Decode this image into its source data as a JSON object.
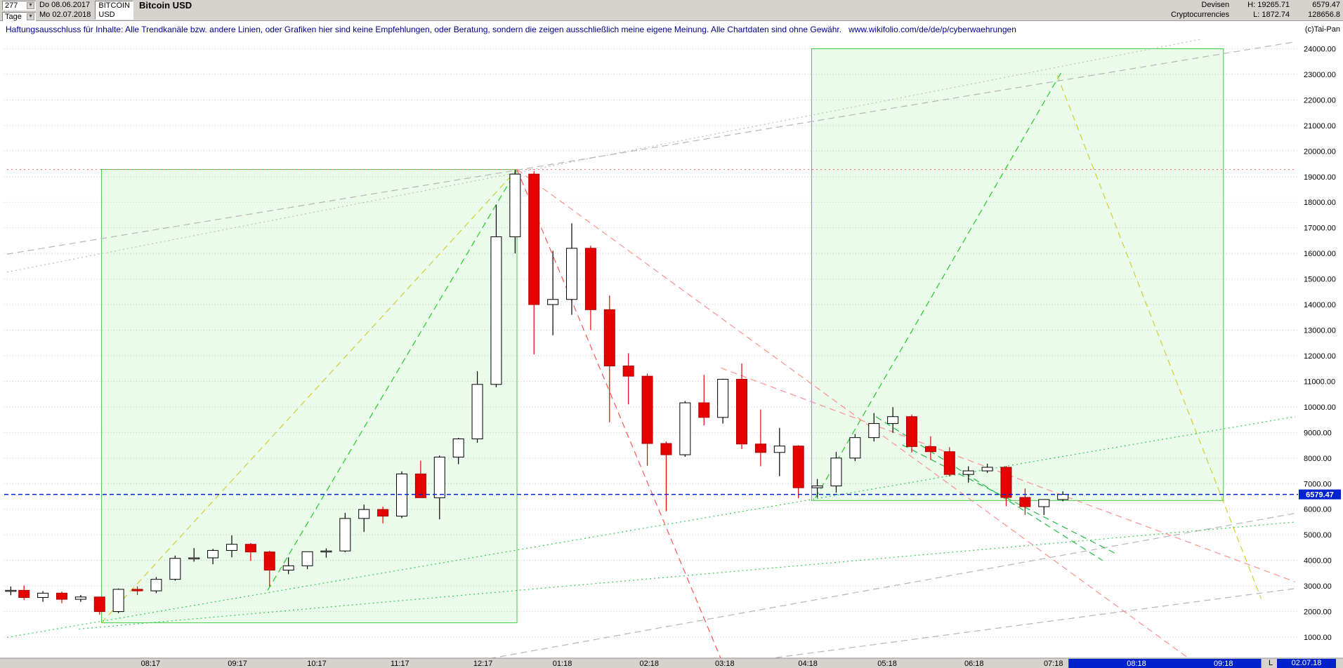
{
  "window": {
    "toolbar": {
      "bars_count": "277",
      "period_label": "Tage",
      "date_from": "Do 08.06.2017",
      "date_to": "Mo 02.07.2018",
      "symbol": "BITCOIN",
      "currency": "USD",
      "title": "Bitcoin USD",
      "category_1": "Devisen",
      "category_2": "Cryptocurrencies",
      "high_label": "H: 19265.71",
      "low_label": "L: 1872.74",
      "last_price": "6579.47",
      "volume": "128656.8"
    },
    "disclaimer_text": "Haftungsausschluss für Inhalte: Alle Trendkanäle bzw. andere Linien, oder Grafiken hier sind keine Empfehlungen, oder Beratung, sondern die zeigen ausschließlich meine eigene Meinung. Alle Chartdaten sind ohne Gewähr.",
    "disclaimer_url": "www.wikifolio.com/de/de/p/cyberwaehrungen",
    "copyright": "(c)Tai-Pan",
    "bottom_right_label": "L",
    "bottom_right_date": "02.07.18",
    "icons": {
      "dropdown": "▼"
    }
  },
  "chart_data": {
    "type": "candlestick",
    "instrument": "Bitcoin USD",
    "timeframe": "Tage",
    "bars_shown": 277,
    "range_start": "Do 08.06.2017",
    "range_end": "Mo 02.07.2018",
    "period_high": 19265.71,
    "period_low": 1872.74,
    "current_price": 6579.47,
    "current_price_label": "6579.47",
    "y_axis": {
      "min": 1000,
      "max": 24000,
      "step": 1000,
      "labels": [
        "24000.00",
        "23000.00",
        "22000.00",
        "21000.00",
        "20000.00",
        "19000.00",
        "18000.00",
        "17000.00",
        "16000.00",
        "15000.00",
        "14000.00",
        "13000.00",
        "12000.00",
        "11000.00",
        "10000.00",
        "9000.00",
        "8000.00",
        "7000.00",
        "6000.00",
        "5000.00",
        "4000.00",
        "3000.00",
        "2000.00",
        "1000.00"
      ]
    },
    "x_axis": {
      "tick_columns": [
        "label",
        "bar_index",
        "highlighted"
      ],
      "ticks": [
        [
          "08:17",
          38,
          0
        ],
        [
          "09:17",
          61,
          0
        ],
        [
          "10:17",
          82,
          0
        ],
        [
          "11:17",
          104,
          0
        ],
        [
          "12:17",
          126,
          0
        ],
        [
          "01:18",
          147,
          0
        ],
        [
          "02:18",
          170,
          0
        ],
        [
          "03:18",
          190,
          0
        ],
        [
          "04:18",
          212,
          0
        ],
        [
          "05:18",
          233,
          0
        ],
        [
          "06:18",
          256,
          0
        ],
        [
          "07:18",
          277,
          0
        ],
        [
          "08:18",
          299,
          1
        ],
        [
          "09:18",
          322,
          1
        ]
      ],
      "future_highlight_from_bar": 281,
      "future_highlight_to_bar": 332
    },
    "candles_weekly": {
      "columns": [
        "week_start",
        "open",
        "high",
        "low",
        "close"
      ],
      "rows": [
        [
          "08.06.17",
          2790,
          2980,
          2640,
          2830
        ],
        [
          "12.06.17",
          2830,
          3020,
          2450,
          2550
        ],
        [
          "19.06.17",
          2550,
          2800,
          2380,
          2720
        ],
        [
          "26.06.17",
          2720,
          2780,
          2330,
          2480
        ],
        [
          "03.07.17",
          2480,
          2650,
          2380,
          2570
        ],
        [
          "10.07.17",
          2570,
          2580,
          1872.74,
          2000
        ],
        [
          "17.07.17",
          2000,
          2900,
          1940,
          2870
        ],
        [
          "24.07.17",
          2870,
          2980,
          2650,
          2810
        ],
        [
          "31.07.17",
          2810,
          3350,
          2720,
          3260
        ],
        [
          "07.08.17",
          3260,
          4190,
          3210,
          4080
        ],
        [
          "14.08.17",
          4080,
          4480,
          3950,
          4100
        ],
        [
          "21.08.17",
          4100,
          4450,
          3850,
          4390
        ],
        [
          "28.08.17",
          4390,
          4980,
          4120,
          4630
        ],
        [
          "04.09.17",
          4630,
          4680,
          3980,
          4330
        ],
        [
          "11.09.17",
          4330,
          4380,
          2980,
          3620
        ],
        [
          "18.09.17",
          3620,
          4120,
          3460,
          3790
        ],
        [
          "25.09.17",
          3790,
          4260,
          3660,
          4340
        ],
        [
          "02.10.17",
          4340,
          4470,
          4110,
          4370
        ],
        [
          "09.10.17",
          4370,
          5860,
          4320,
          5640
        ],
        [
          "16.10.17",
          5640,
          6180,
          5110,
          5990
        ],
        [
          "23.10.17",
          5990,
          6100,
          5450,
          5730
        ],
        [
          "30.10.17",
          5730,
          7480,
          5650,
          7380
        ],
        [
          "06.11.17",
          7380,
          7900,
          6450,
          6450
        ],
        [
          "13.11.17",
          6450,
          8100,
          5605,
          8040
        ],
        [
          "20.11.17",
          8040,
          8790,
          7760,
          8750
        ],
        [
          "27.11.17",
          8750,
          11395,
          8600,
          10880
        ],
        [
          "04.12.17",
          10880,
          17900,
          10770,
          16650
        ],
        [
          "11.12.17",
          16650,
          19265.71,
          16000,
          19100
        ],
        [
          "18.12.17",
          19100,
          19220,
          12050,
          14000
        ],
        [
          "25.12.17",
          14000,
          16100,
          12800,
          14200
        ],
        [
          "01.01.18",
          14200,
          17176,
          13600,
          16200
        ],
        [
          "08.01.18",
          16200,
          16300,
          13000,
          13800
        ],
        [
          "15.01.18",
          13800,
          14350,
          9400,
          11600
        ],
        [
          "22.01.18",
          11600,
          12100,
          10100,
          11200
        ],
        [
          "29.01.18",
          11200,
          11300,
          7700,
          8570
        ],
        [
          "05.02.18",
          8570,
          8650,
          5920,
          8130
        ],
        [
          "12.02.18",
          8130,
          10230,
          8050,
          10160
        ],
        [
          "19.02.18",
          10160,
          11250,
          9280,
          9590
        ],
        [
          "26.02.18",
          9590,
          11100,
          9350,
          11080
        ],
        [
          "05.03.18",
          11080,
          11700,
          8350,
          8550
        ],
        [
          "12.03.18",
          8550,
          9900,
          7680,
          8220
        ],
        [
          "19.03.18",
          8220,
          9180,
          7290,
          8470
        ],
        [
          "26.03.18",
          8470,
          8500,
          6430,
          6840
        ],
        [
          "02.04.18",
          6840,
          7180,
          6450,
          6910
        ],
        [
          "09.04.18",
          6910,
          8240,
          6650,
          8000
        ],
        [
          "16.04.18",
          8000,
          8940,
          7880,
          8800
        ],
        [
          "23.04.18",
          8800,
          9760,
          8650,
          9350
        ],
        [
          "30.04.18",
          9350,
          9990,
          8990,
          9620
        ],
        [
          "07.05.18",
          9620,
          9700,
          8220,
          8450
        ],
        [
          "14.05.18",
          8450,
          8850,
          7930,
          8250
        ],
        [
          "21.05.18",
          8250,
          8420,
          7280,
          7360
        ],
        [
          "28.05.18",
          7360,
          7680,
          7040,
          7500
        ],
        [
          "04.06.18",
          7500,
          7780,
          7420,
          7640
        ],
        [
          "11.06.18",
          7640,
          7690,
          6120,
          6460
        ],
        [
          "18.06.18",
          6460,
          6810,
          5780,
          6100
        ],
        [
          "25.06.18",
          6100,
          6330,
          5770,
          6380
        ],
        [
          "02.07.18",
          6380,
          6700,
          6310,
          6579.47
        ]
      ]
    },
    "annotations": {
      "boxes": {
        "columns": [
          "name",
          "stroke",
          "fill",
          "from_bar",
          "from_price",
          "to_bar",
          "to_price"
        ],
        "rows": [
          [
            "bull-phase-box-2017",
            "#44cc44",
            "rgba(60,220,60,0.10)",
            25,
            1560,
            135,
            19280
          ],
          [
            "projection-box-2018",
            "#44cc44",
            "rgba(60,220,60,0.10)",
            213,
            6340,
            322,
            24000
          ]
        ]
      },
      "lines": {
        "columns": [
          "name",
          "color",
          "style",
          "from_bar",
          "from_price",
          "to_bar",
          "to_price"
        ],
        "rows": [
          [
            "ath-level-line",
            "#ff7070",
            "dotted",
            0,
            19280,
            341,
            19280
          ],
          [
            "bull-channel-diagonal-yellow",
            "#cfcf30",
            "dashed",
            25,
            1560,
            135,
            19280
          ],
          [
            "bull-trend-green",
            "#22cc22",
            "dashed",
            69,
            2830,
            135,
            19280
          ],
          [
            "projection-up-green",
            "#22cc22",
            "dashed",
            214,
            6440,
            279,
            23060
          ],
          [
            "projection-down-yellow",
            "#cfcf30",
            "dashed",
            278,
            22960,
            332,
            2500
          ],
          [
            "longterm-line-gray-dashed",
            "#b5b5b5",
            "dashed",
            0,
            15970,
            341,
            24270
          ],
          [
            "longterm-line-gray-dotted",
            "#bdbdbd",
            "dotted",
            0,
            15270,
            341,
            25090
          ],
          [
            "fan-gray-lower-1",
            "#b5b5b5",
            "dashed",
            125,
            90,
            341,
            5840
          ],
          [
            "fan-gray-lower-2",
            "#b5b5b5",
            "dashed",
            198,
            90,
            341,
            2900
          ],
          [
            "support-green-dotted-1",
            "#33cc55",
            "dotted",
            0,
            990,
            341,
            9620
          ],
          [
            "support-green-dotted-2",
            "#33cc55",
            "dotted",
            19,
            1320,
            341,
            5500
          ],
          [
            "downtrend-red-steep",
            "#ff5555",
            "dashed",
            135,
            19280,
            189,
            150
          ],
          [
            "downtrend-red-main",
            "#ff9090",
            "dashed",
            135,
            19280,
            313,
            150
          ],
          [
            "resistance-red-from-march",
            "#ff9090",
            "dashed",
            189,
            11520,
            341,
            3160
          ],
          [
            "down-channel-green-1",
            "#22bb44",
            "dashed",
            230,
            9620,
            290,
            4000
          ],
          [
            "down-channel-green-2",
            "#22bb44",
            "dashed",
            237,
            8515,
            294,
            4230
          ]
        ]
      }
    },
    "colors": {
      "up_candle": "#ffffff",
      "up_outline": "#000000",
      "down_candle": "#e60000",
      "down_outline": "#aa0000",
      "price_line": "#0022cc",
      "grid": "#c8c8c8",
      "axis_bg": "#d6d3ce",
      "future_highlight": "#0022cc"
    }
  }
}
